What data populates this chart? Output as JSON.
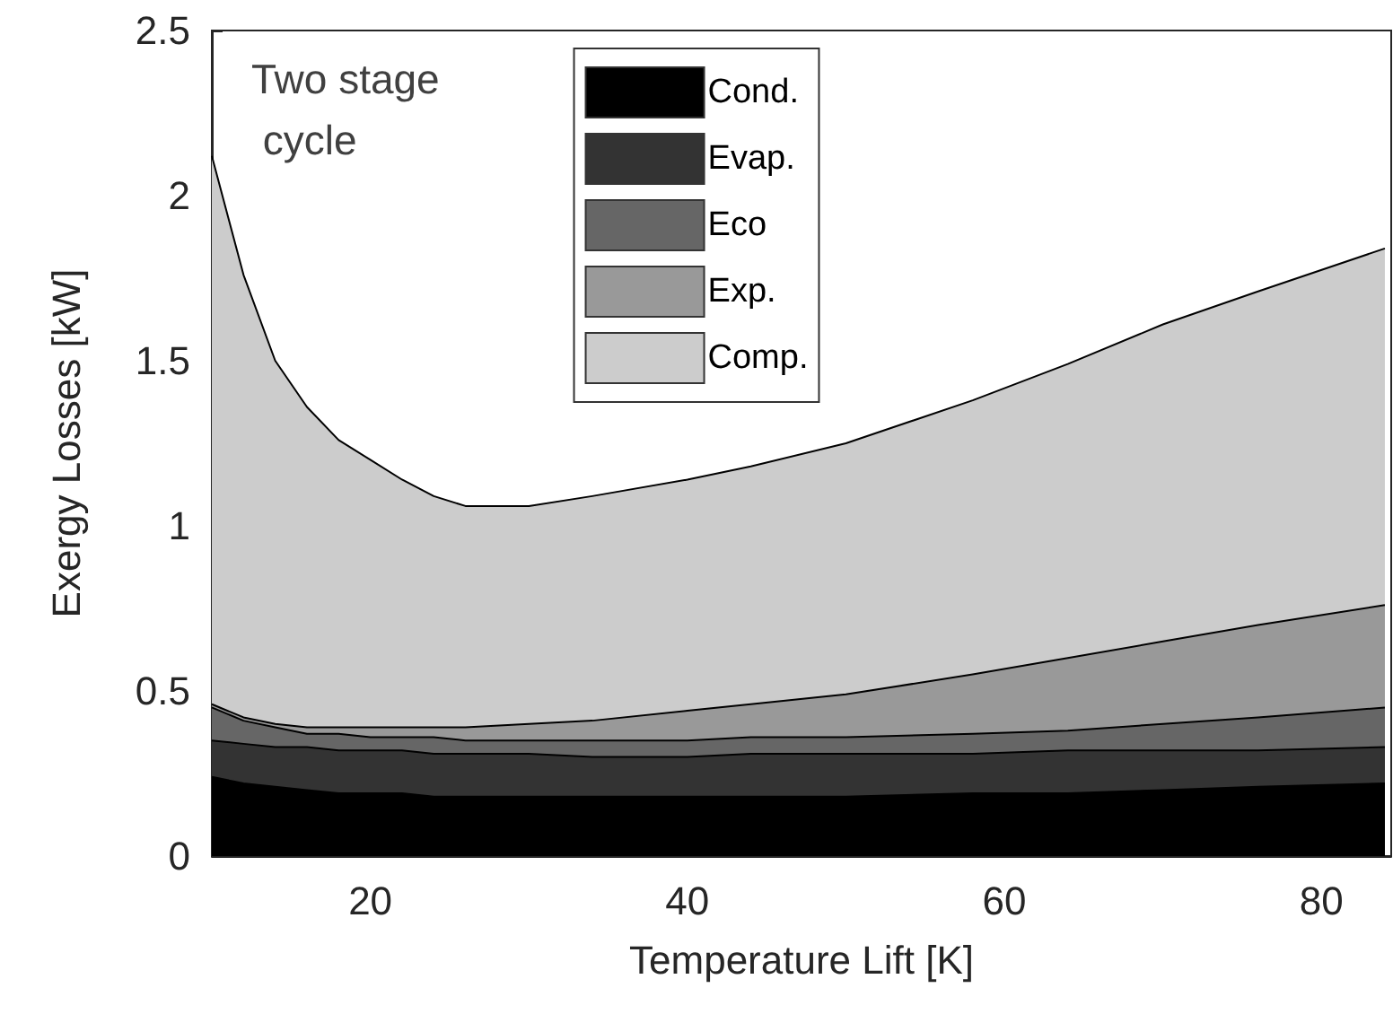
{
  "chart_data": {
    "type": "area",
    "stacked": true,
    "xlabel": "Temperature Lift [K]",
    "ylabel": "Exergy Losses [kW]",
    "annotations": [
      "Two stage cycle"
    ],
    "x": [
      10,
      12,
      14,
      16,
      18,
      20,
      22,
      24,
      26,
      30,
      34,
      40,
      44,
      50,
      58,
      64,
      70,
      76,
      84
    ],
    "series": [
      {
        "name": "Cond.",
        "color": "#000000",
        "values": [
          0.24,
          0.22,
          0.21,
          0.2,
          0.19,
          0.19,
          0.19,
          0.18,
          0.18,
          0.18,
          0.18,
          0.18,
          0.18,
          0.18,
          0.19,
          0.19,
          0.2,
          0.21,
          0.22
        ]
      },
      {
        "name": "Evap.",
        "color": "#333333",
        "values": [
          0.11,
          0.12,
          0.12,
          0.13,
          0.13,
          0.13,
          0.13,
          0.13,
          0.13,
          0.13,
          0.12,
          0.12,
          0.13,
          0.13,
          0.12,
          0.13,
          0.12,
          0.11,
          0.11
        ]
      },
      {
        "name": "Eco",
        "color": "#666666",
        "values": [
          0.1,
          0.07,
          0.06,
          0.04,
          0.05,
          0.04,
          0.04,
          0.05,
          0.04,
          0.04,
          0.05,
          0.05,
          0.05,
          0.05,
          0.06,
          0.06,
          0.08,
          0.1,
          0.12
        ]
      },
      {
        "name": "Exp.",
        "color": "#999999",
        "values": [
          0.01,
          0.01,
          0.01,
          0.02,
          0.02,
          0.03,
          0.03,
          0.03,
          0.04,
          0.05,
          0.06,
          0.09,
          0.1,
          0.13,
          0.18,
          0.22,
          0.25,
          0.28,
          0.31
        ]
      },
      {
        "name": "Comp.",
        "color": "#cccccc",
        "values": [
          1.66,
          1.34,
          1.1,
          0.97,
          0.87,
          0.81,
          0.75,
          0.7,
          0.67,
          0.66,
          0.68,
          0.7,
          0.72,
          0.76,
          0.83,
          0.89,
          0.96,
          1.01,
          1.08
        ]
      }
    ],
    "xlim": [
      10,
      84.4
    ],
    "xticks": [
      20,
      40,
      60,
      80
    ],
    "ylim": [
      0,
      2.5
    ],
    "yticks": [
      0,
      0.5,
      1,
      1.5,
      2,
      2.5
    ],
    "grid": false,
    "legend": "top"
  }
}
